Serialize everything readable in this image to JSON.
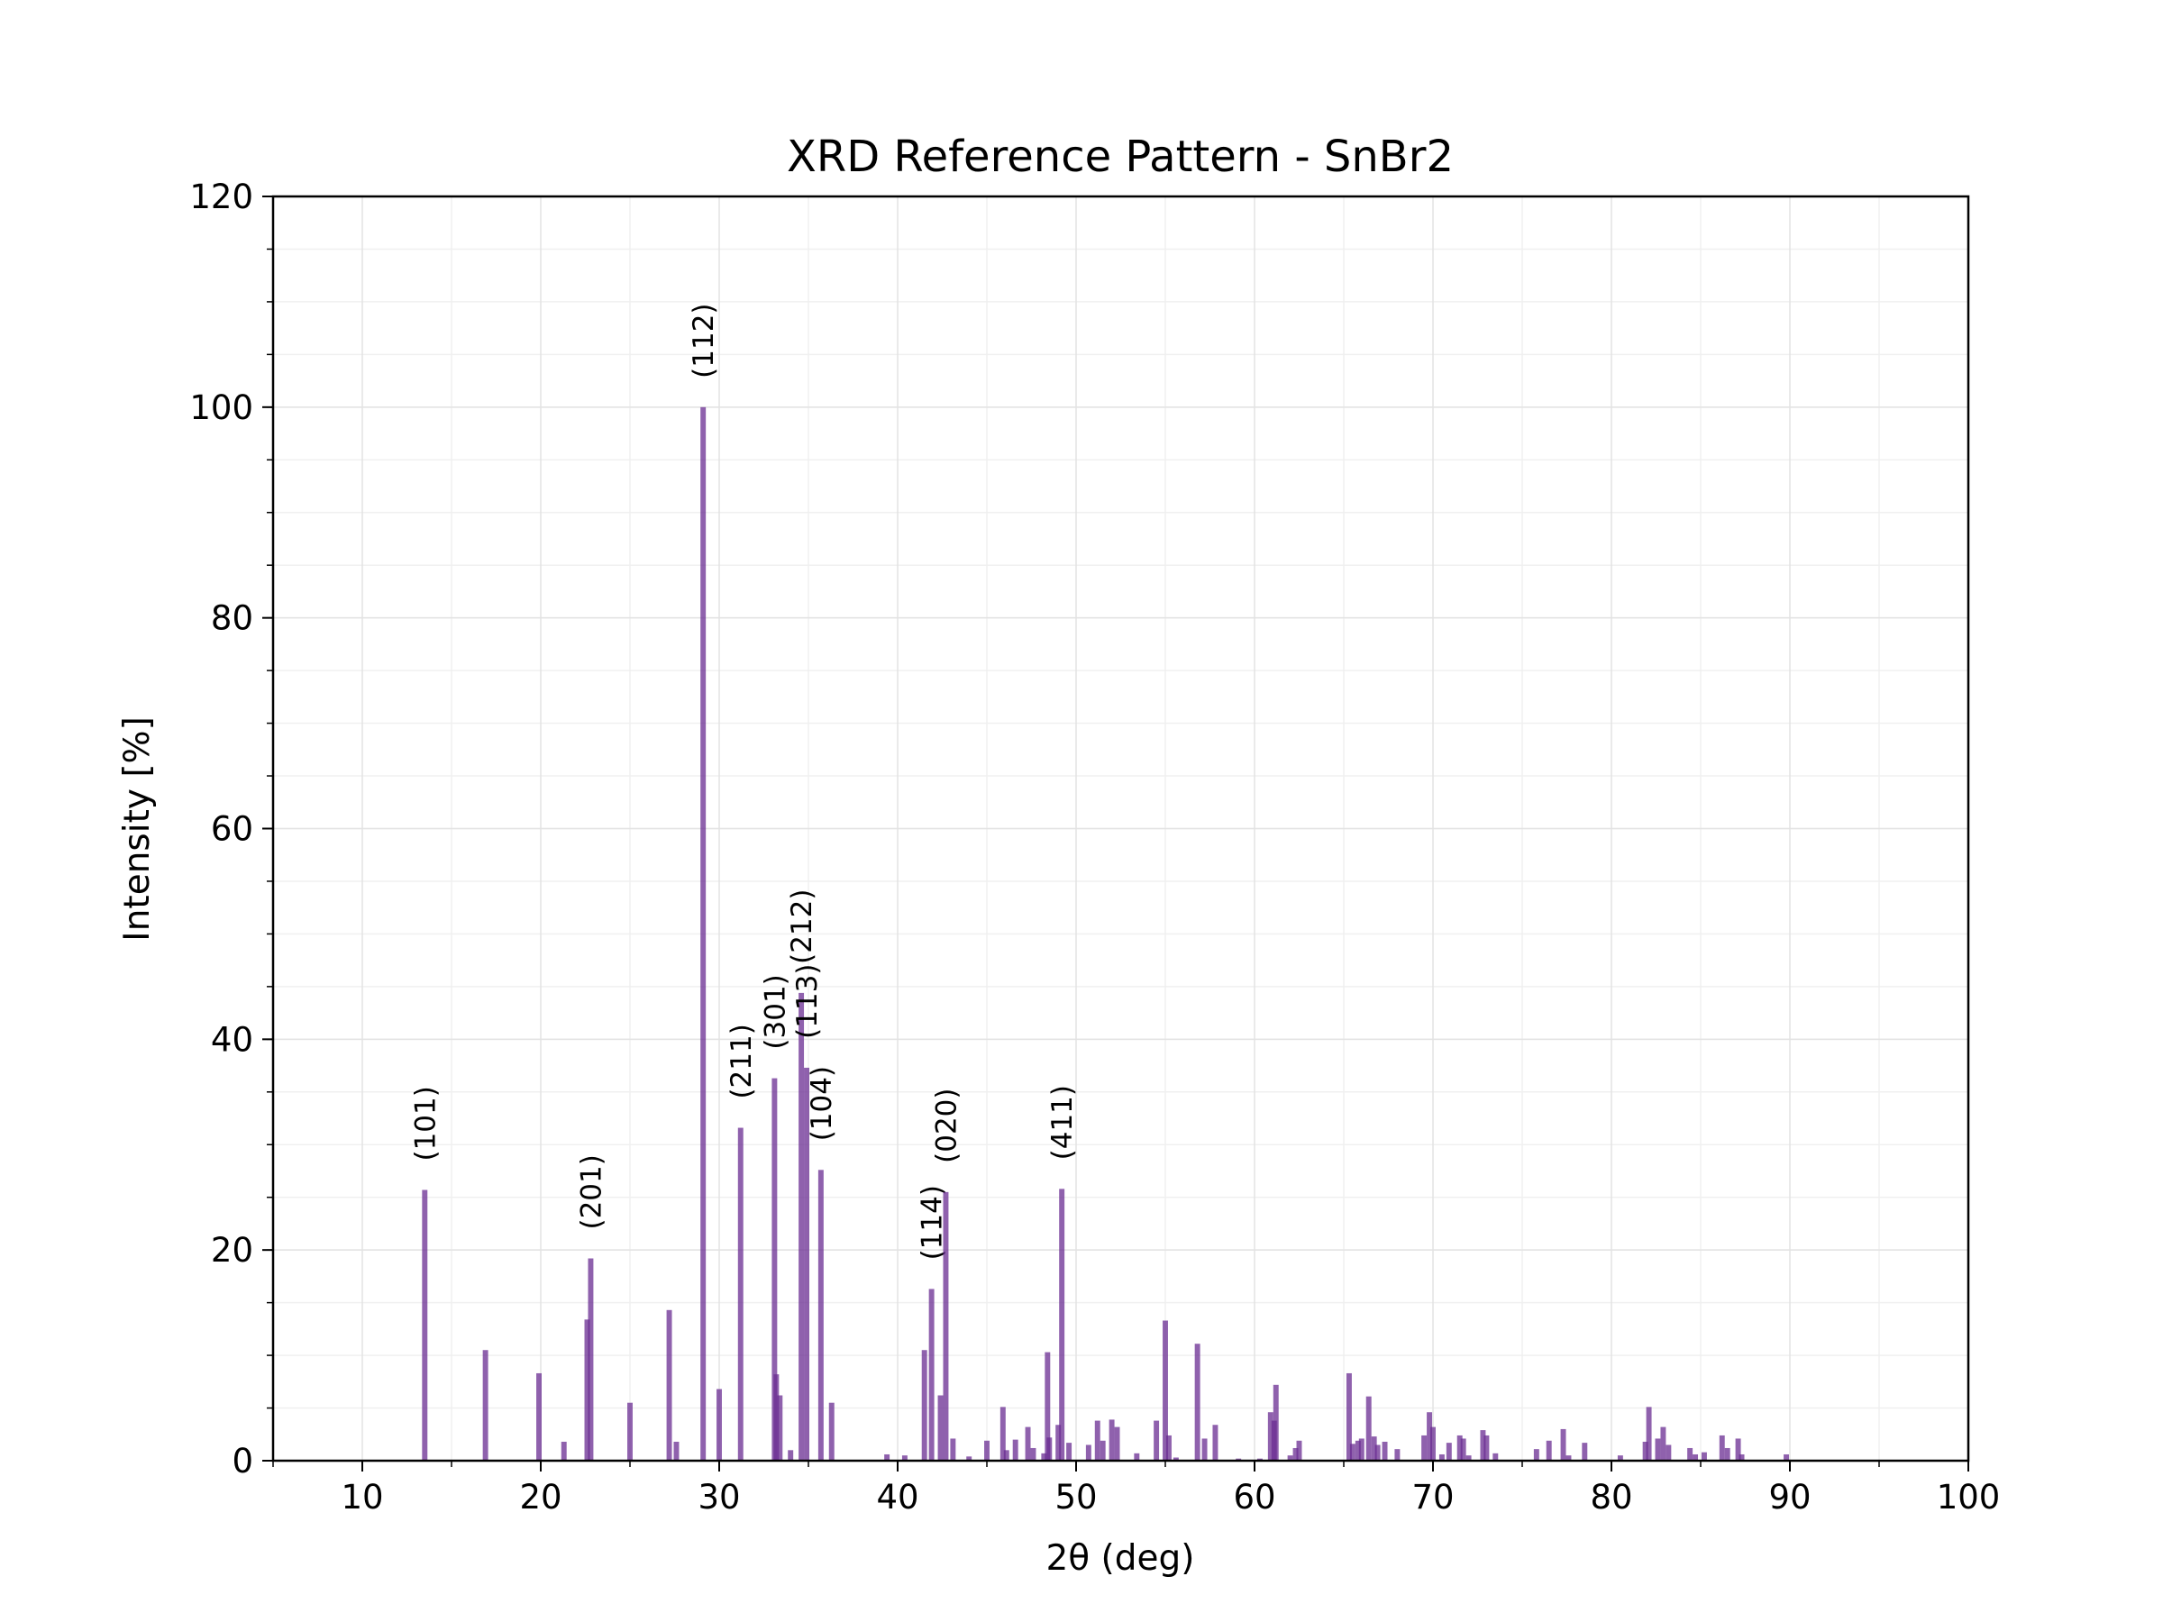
{
  "chart_data": {
    "type": "stick",
    "title": "XRD Reference Pattern - SnBr2",
    "x_label": "2θ (deg)",
    "y_label": "Intensity [%]",
    "x": [
      13.5,
      16.9,
      19.9,
      21.3,
      22.6,
      22.8,
      25.0,
      27.2,
      27.6,
      29.1,
      30.0,
      31.2,
      33.1,
      33.2,
      33.4,
      34.0,
      34.6,
      34.9,
      35.7,
      36.3,
      39.4,
      40.4,
      41.5,
      41.9,
      42.4,
      42.7,
      43.1,
      44.0,
      45.0,
      45.9,
      46.1,
      46.6,
      47.3,
      47.6,
      48.2,
      48.4,
      48.5,
      49.0,
      49.2,
      49.6,
      50.7,
      51.2,
      51.5,
      52.0,
      52.3,
      53.4,
      54.5,
      55.0,
      55.2,
      55.6,
      56.8,
      57.2,
      57.8,
      59.1,
      60.3,
      60.9,
      61.1,
      61.2,
      62.0,
      62.3,
      62.5,
      65.3,
      65.5,
      65.8,
      66.0,
      66.4,
      66.7,
      66.9,
      67.3,
      68.0,
      69.5,
      69.8,
      70.0,
      70.5,
      70.9,
      71.5,
      71.7,
      72.0,
      72.8,
      73.0,
      73.5,
      75.8,
      76.5,
      77.3,
      77.6,
      78.5,
      80.5,
      81.9,
      82.1,
      82.6,
      82.9,
      83.2,
      84.4,
      84.7,
      85.2,
      86.2,
      86.5,
      87.1,
      87.3,
      89.8
    ],
    "values": [
      25.7,
      10.5,
      8.3,
      1.8,
      13.4,
      19.2,
      5.5,
      14.3,
      1.8,
      100,
      6.8,
      31.6,
      36.3,
      8.2,
      6.2,
      1.0,
      44.4,
      37.3,
      27.6,
      5.5,
      0.6,
      0.5,
      10.5,
      16.3,
      6.2,
      25.5,
      2.1,
      0.4,
      1.9,
      5.1,
      1.0,
      2.0,
      3.2,
      1.2,
      0.7,
      10.3,
      2.2,
      3.4,
      25.8,
      1.7,
      1.5,
      3.8,
      1.9,
      3.9,
      3.2,
      0.7,
      3.8,
      13.3,
      2.4,
      0.3,
      11.1,
      2.1,
      3.4,
      0.2,
      0.2,
      4.6,
      3.8,
      7.2,
      0.5,
      1.2,
      1.9,
      8.3,
      1.6,
      1.9,
      2.1,
      6.1,
      2.3,
      1.5,
      1.8,
      1.1,
      2.4,
      4.6,
      3.2,
      0.6,
      1.7,
      2.4,
      2.1,
      0.5,
      2.9,
      2.4,
      0.7,
      1.1,
      1.9,
      3.0,
      0.5,
      1.7,
      0.5,
      1.8,
      5.1,
      2.1,
      3.2,
      1.5,
      1.2,
      0.6,
      0.8,
      2.4,
      1.2,
      2.1,
      0.6,
      0.6
    ],
    "hkl": [
      "(101)",
      null,
      null,
      null,
      null,
      "(201)",
      null,
      null,
      null,
      "(112)",
      null,
      "(211)",
      "(301)",
      null,
      null,
      null,
      "(212)",
      "(113)",
      "(104)",
      null,
      null,
      null,
      null,
      "(114)",
      null,
      "(020)",
      null,
      null,
      null,
      null,
      null,
      null,
      null,
      null,
      null,
      null,
      null,
      null,
      "(411)",
      null,
      null,
      null,
      null,
      null,
      null,
      null,
      null,
      null,
      null,
      null,
      null,
      null,
      null,
      null,
      null,
      null,
      null,
      null,
      null,
      null,
      null,
      null,
      null,
      null,
      null,
      null,
      null,
      null,
      null,
      null,
      null,
      null,
      null,
      null,
      null,
      null,
      null,
      null,
      null,
      null,
      null,
      null,
      null,
      null,
      null,
      null,
      null,
      null,
      null,
      null,
      null,
      null,
      null,
      null,
      null,
      null,
      null,
      null,
      null,
      null
    ],
    "color": "#6a2c91",
    "xlim": [
      5,
      100
    ],
    "xticks": [
      10,
      20,
      30,
      40,
      50,
      60,
      70,
      80,
      90,
      100
    ],
    "ylim": [
      0,
      120
    ],
    "yticks": [
      0,
      20,
      40,
      60,
      80,
      100,
      120
    ],
    "grid": true
  }
}
